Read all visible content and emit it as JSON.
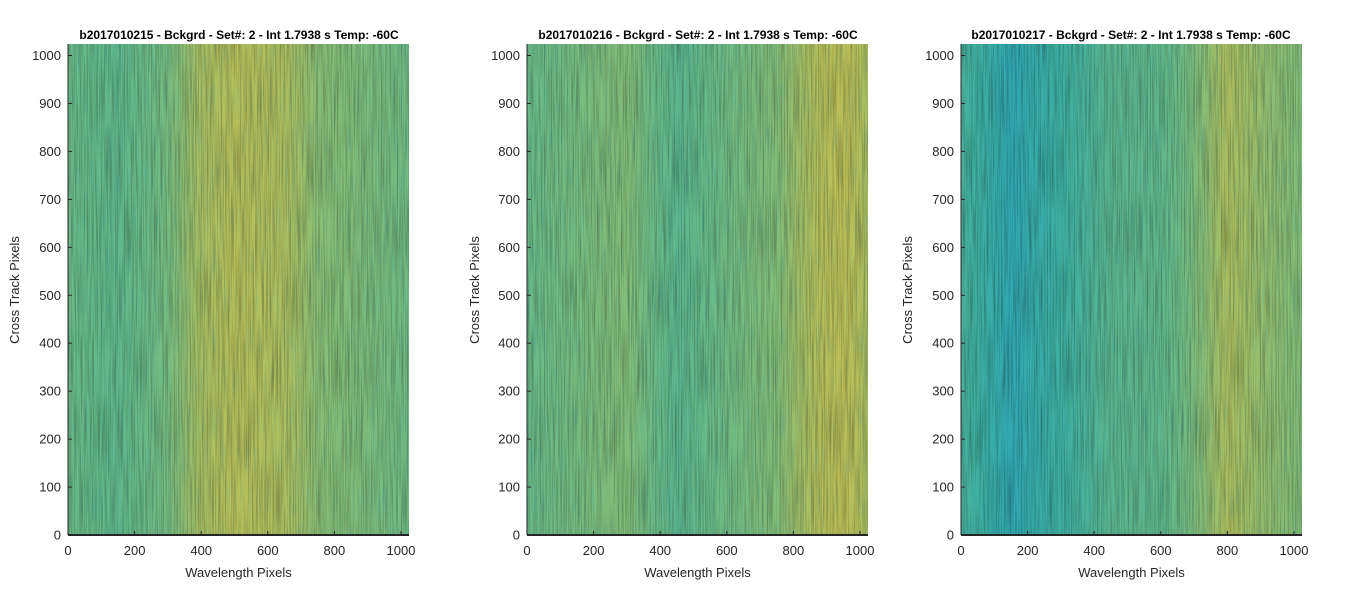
{
  "chart_data": [
    {
      "type": "heatmap",
      "title": "b2017010215 - Bckgrd - Set#: 2 - Int 1.7938 s Temp: -60C",
      "xlabel": "Wavelength Pixels",
      "ylabel": "Cross Track Pixels",
      "xlim": [
        0,
        1024
      ],
      "ylim": [
        0,
        1024
      ],
      "xticks": [
        "0",
        "200",
        "400",
        "600",
        "800",
        "1000"
      ],
      "yticks": [
        "0",
        "100",
        "200",
        "300",
        "400",
        "500",
        "600",
        "700",
        "800",
        "900",
        "1000"
      ],
      "grid": false,
      "colormap": [
        "#1fa0c8",
        "#3fb0a0",
        "#78bd80",
        "#b8c05a",
        "#d8c048"
      ],
      "column_profile": [
        {
          "x": 0,
          "level": 0.45
        },
        {
          "x": 150,
          "level": 0.4
        },
        {
          "x": 300,
          "level": 0.5
        },
        {
          "x": 400,
          "level": 0.7
        },
        {
          "x": 500,
          "level": 0.75
        },
        {
          "x": 650,
          "level": 0.72
        },
        {
          "x": 750,
          "level": 0.58
        },
        {
          "x": 900,
          "level": 0.52
        },
        {
          "x": 1024,
          "level": 0.48
        }
      ]
    },
    {
      "type": "heatmap",
      "title": "b2017010216 - Bckgrd - Set#: 2 - Int 1.7938 s Temp: -60C",
      "xlabel": "Wavelength Pixels",
      "ylabel": "Cross Track Pixels",
      "xlim": [
        0,
        1024
      ],
      "ylim": [
        0,
        1024
      ],
      "xticks": [
        "0",
        "200",
        "400",
        "600",
        "800",
        "1000"
      ],
      "yticks": [
        "0",
        "100",
        "200",
        "300",
        "400",
        "500",
        "600",
        "700",
        "800",
        "900",
        "1000"
      ],
      "grid": false,
      "colormap": [
        "#1fa0c8",
        "#3fb0a0",
        "#78bd80",
        "#b8c05a",
        "#d8c048"
      ],
      "column_profile": [
        {
          "x": 0,
          "level": 0.45
        },
        {
          "x": 150,
          "level": 0.5
        },
        {
          "x": 300,
          "level": 0.55
        },
        {
          "x": 450,
          "level": 0.38
        },
        {
          "x": 600,
          "level": 0.48
        },
        {
          "x": 750,
          "level": 0.55
        },
        {
          "x": 850,
          "level": 0.72
        },
        {
          "x": 950,
          "level": 0.8
        },
        {
          "x": 1024,
          "level": 0.7
        }
      ]
    },
    {
      "type": "heatmap",
      "title": "b2017010217 - Bckgrd - Set#: 2 - Int 1.7938 s Temp: -60C",
      "xlabel": "Wavelength Pixels",
      "ylabel": "Cross Track Pixels",
      "xlim": [
        0,
        1024
      ],
      "ylim": [
        0,
        1024
      ],
      "xticks": [
        "0",
        "200",
        "400",
        "600",
        "800",
        "1000"
      ],
      "yticks": [
        "0",
        "100",
        "200",
        "300",
        "400",
        "500",
        "600",
        "700",
        "800",
        "900",
        "1000"
      ],
      "grid": false,
      "colormap": [
        "#1fa0c8",
        "#3fb0a0",
        "#78bd80",
        "#b8c05a",
        "#d8c048"
      ],
      "column_profile": [
        {
          "x": 0,
          "level": 0.3
        },
        {
          "x": 150,
          "level": 0.15
        },
        {
          "x": 300,
          "level": 0.25
        },
        {
          "x": 450,
          "level": 0.38
        },
        {
          "x": 600,
          "level": 0.4
        },
        {
          "x": 700,
          "level": 0.52
        },
        {
          "x": 800,
          "level": 0.72
        },
        {
          "x": 900,
          "level": 0.62
        },
        {
          "x": 1024,
          "level": 0.55
        }
      ]
    }
  ]
}
